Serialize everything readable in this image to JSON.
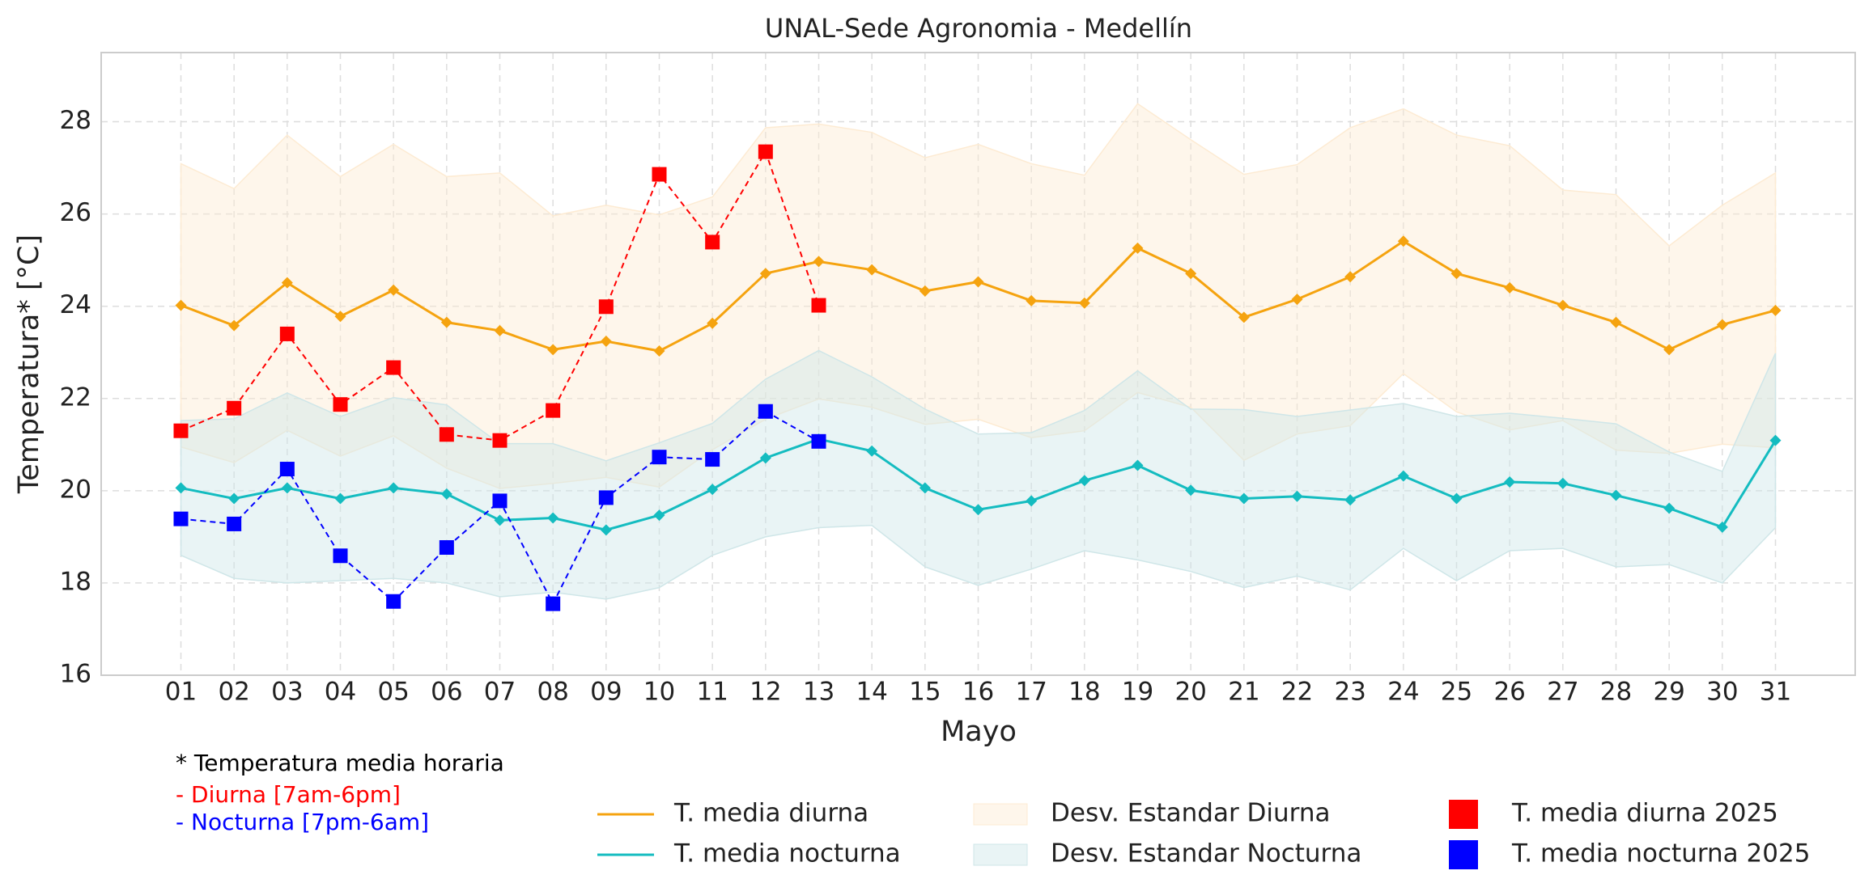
{
  "chart_data": {
    "type": "line",
    "title": "UNAL-Sede Agronomia - Medellín",
    "x_label": "Mayo",
    "y_label": "Temperatura* [°C]",
    "categories": [
      "01",
      "02",
      "03",
      "04",
      "05",
      "06",
      "07",
      "08",
      "09",
      "10",
      "11",
      "12",
      "13",
      "14",
      "15",
      "16",
      "17",
      "18",
      "19",
      "20",
      "21",
      "22",
      "23",
      "24",
      "25",
      "26",
      "27",
      "28",
      "29",
      "30",
      "31"
    ],
    "ylim": [
      16,
      29.5
    ],
    "yticks": [
      16,
      18,
      20,
      22,
      24,
      26,
      28
    ],
    "grid": true,
    "notes": [
      {
        "text": "* Temperatura media horaria",
        "color": "#000000"
      },
      {
        "text": "- Diurna [7am-6pm]",
        "color": "#ff0000"
      },
      {
        "text": "- Nocturna [7pm-6am]",
        "color": "#0000ff"
      }
    ],
    "series": [
      {
        "name": "T. media diurna",
        "kind": "line",
        "color": "#f5a30f",
        "values": [
          24.02,
          23.58,
          24.51,
          23.78,
          24.35,
          23.65,
          23.47,
          23.06,
          23.24,
          23.03,
          23.63,
          24.71,
          24.97,
          24.79,
          24.33,
          24.53,
          24.12,
          24.07,
          25.26,
          24.71,
          23.76,
          24.15,
          24.64,
          25.41,
          24.71,
          24.4,
          24.02,
          23.65,
          23.06,
          23.6,
          23.91
        ]
      },
      {
        "name": "T. media nocturna",
        "kind": "line",
        "color": "#14bcc0",
        "values": [
          20.06,
          19.83,
          20.06,
          19.83,
          20.06,
          19.93,
          19.36,
          19.41,
          19.15,
          19.47,
          20.03,
          20.71,
          21.12,
          20.86,
          20.06,
          19.59,
          19.78,
          20.22,
          20.55,
          20.01,
          19.83,
          19.88,
          19.8,
          20.32,
          19.83,
          20.19,
          20.16,
          19.9,
          19.62,
          19.21,
          21.09
        ]
      },
      {
        "name": "Desv. Estandar Diurna",
        "kind": "band",
        "color": "#fdebd3",
        "upper": [
          27.09,
          26.55,
          27.71,
          26.81,
          27.51,
          26.81,
          26.89,
          25.96,
          26.19,
          25.98,
          26.37,
          27.87,
          27.95,
          27.77,
          27.22,
          27.51,
          27.09,
          26.84,
          28.39,
          27.61,
          26.86,
          27.07,
          27.87,
          28.28,
          27.71,
          27.48,
          26.52,
          26.42,
          25.31,
          26.19,
          26.89
        ],
        "lower": [
          20.95,
          20.61,
          21.31,
          20.75,
          21.19,
          20.49,
          20.05,
          20.16,
          20.29,
          20.08,
          20.89,
          21.55,
          21.99,
          21.81,
          21.44,
          21.55,
          21.15,
          21.3,
          22.13,
          21.81,
          20.66,
          21.23,
          21.41,
          22.54,
          21.71,
          21.32,
          21.52,
          20.88,
          20.81,
          21.01,
          20.93
        ]
      },
      {
        "name": "Desv. Estandar Nocturna",
        "kind": "band",
        "color": "#cfe6e8",
        "upper": [
          21.52,
          21.56,
          22.12,
          21.61,
          22.02,
          21.86,
          21.02,
          21.02,
          20.65,
          21.04,
          21.46,
          22.42,
          23.04,
          22.47,
          21.77,
          21.23,
          21.26,
          21.74,
          22.6,
          21.77,
          21.76,
          21.61,
          21.75,
          21.89,
          21.61,
          21.68,
          21.57,
          21.45,
          20.84,
          20.42,
          22.98
        ],
        "lower": [
          18.6,
          18.1,
          18.0,
          18.05,
          18.1,
          18.0,
          17.7,
          17.8,
          17.65,
          17.9,
          18.6,
          19.0,
          19.2,
          19.25,
          18.35,
          17.95,
          18.3,
          18.7,
          18.5,
          18.25,
          17.9,
          18.15,
          17.85,
          18.75,
          18.05,
          18.7,
          18.75,
          18.35,
          18.4,
          18.0,
          19.2
        ]
      },
      {
        "name": "T. media diurna 2025",
        "kind": "markers",
        "color": "#ff0000",
        "values": [
          21.3,
          21.79,
          23.4,
          21.87,
          22.67,
          21.22,
          21.09,
          21.74,
          23.99,
          26.86,
          25.39,
          27.35,
          24.02,
          null,
          null,
          null,
          null,
          null,
          null,
          null,
          null,
          null,
          null,
          null,
          null,
          null,
          null,
          null,
          null,
          null,
          null
        ]
      },
      {
        "name": "T. media nocturna 2025",
        "kind": "markers",
        "color": "#0000ff",
        "values": [
          19.39,
          19.28,
          20.47,
          18.59,
          17.6,
          18.77,
          19.78,
          17.55,
          19.85,
          20.73,
          20.68,
          21.72,
          21.07,
          null,
          null,
          null,
          null,
          null,
          null,
          null,
          null,
          null,
          null,
          null,
          null,
          null,
          null,
          null,
          null,
          null,
          null
        ]
      }
    ]
  }
}
